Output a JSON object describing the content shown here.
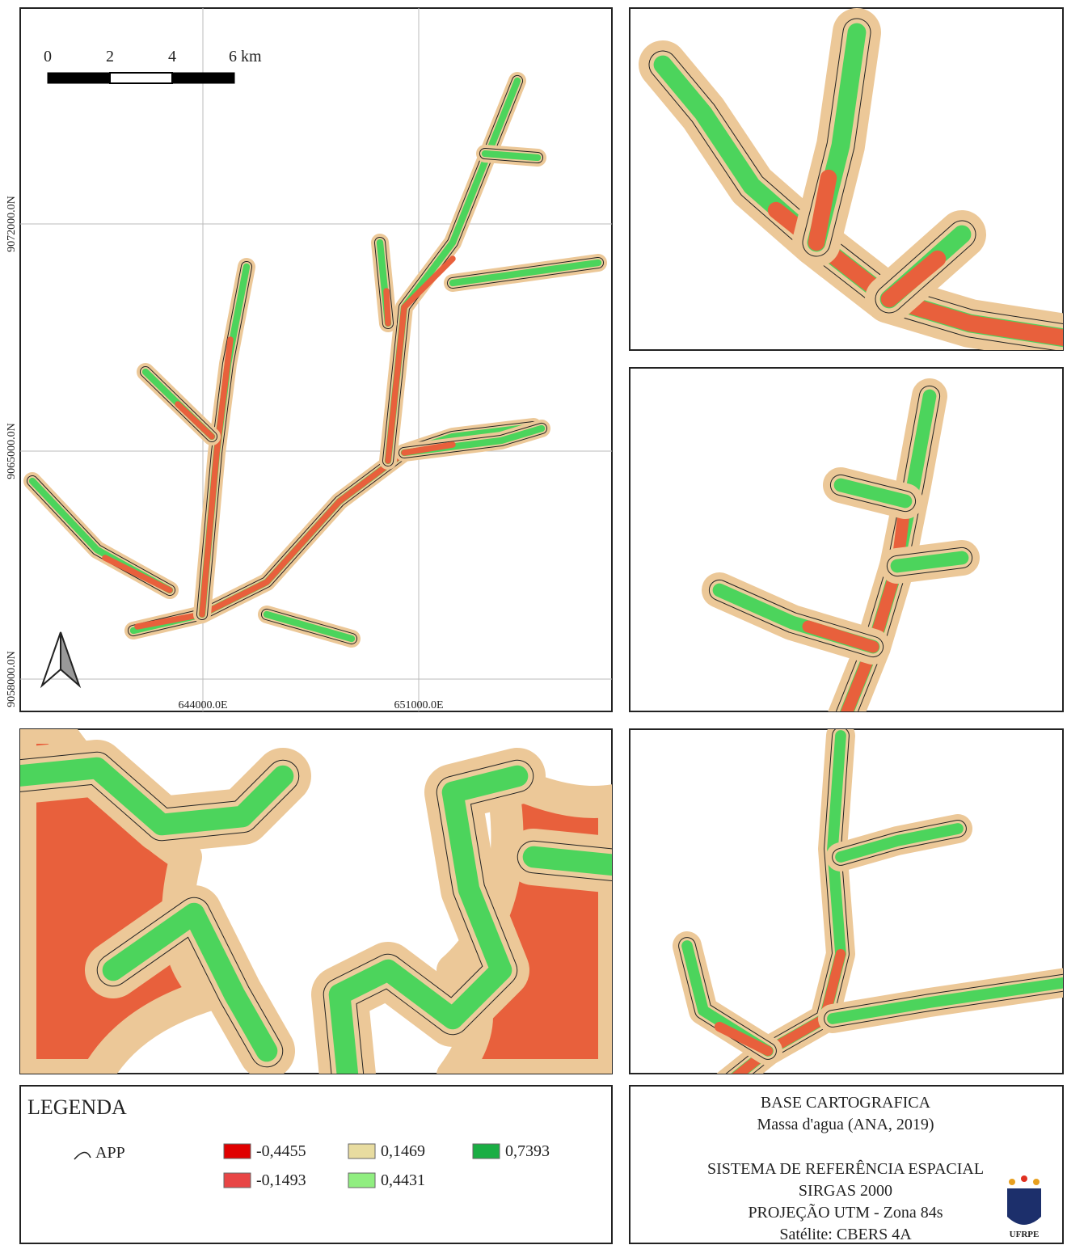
{
  "map": {
    "scale_labels": [
      "0",
      "2",
      "4",
      "6 km"
    ],
    "northings": [
      "9072000.0N",
      "9065000.0N",
      "9058000.0N"
    ],
    "eastings": [
      "644000.0E",
      "651000.0E"
    ]
  },
  "legend": {
    "title": "LEGENDA",
    "app": "APP",
    "classes": [
      {
        "label": "-0,4455",
        "color": "#e00000"
      },
      {
        "label": "-0,1493",
        "color": "#e84545"
      },
      {
        "label": "0,1469",
        "color": "#e8dca0"
      },
      {
        "label": "0,4431",
        "color": "#90ee80"
      },
      {
        "label": "0,7393",
        "color": "#1aae44"
      }
    ]
  },
  "info": {
    "lines": [
      "BASE CARTOGRAFICA",
      "Massa d'agua (ANA, 2019)",
      "SISTEMA DE REFERÊNCIA ESPACIAL",
      "SIRGAS 2000",
      "PROJEÇÃO UTM - Zona 84s",
      "Satélite: CBERS 4A"
    ],
    "logo": "UFRPE"
  }
}
